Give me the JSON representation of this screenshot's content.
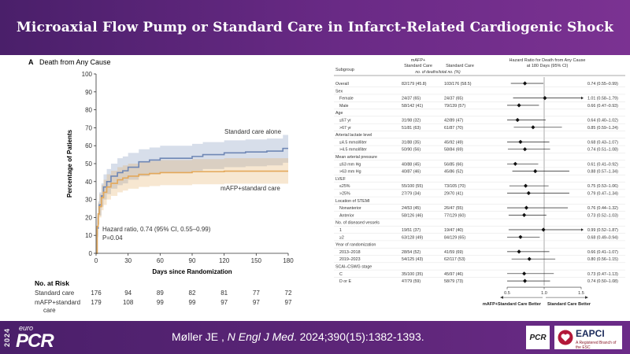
{
  "title": "Microaxial Flow Pump or Standard Care in Infarct-Related Cardiogenic Shock",
  "footer": {
    "year": "2024",
    "brand_small": "euro",
    "brand_large": "PCR",
    "citation_authors": "Møller JE ,",
    "citation_journal": "N Engl J Med",
    "citation_ref": ". 2024;390(15):1382-1393.",
    "logo_pcr": "PCR",
    "logo_eapci": "EAPCI",
    "logo_eapci_sub": "A Registered Branch of the ESC"
  },
  "colors": {
    "standard": "#6f87b5",
    "mafp": "#e3a85a"
  },
  "chart_data": [
    {
      "type": "line",
      "panel_label": "A",
      "title": "Death from Any Cause",
      "xlabel": "Days since Randomization",
      "ylabel": "Percentage of Patients",
      "xlim": [
        0,
        180
      ],
      "ylim": [
        0,
        100
      ],
      "xticks": [
        "0",
        "30",
        "60",
        "90",
        "120",
        "150",
        "180"
      ],
      "yticks": [
        "0",
        "10",
        "20",
        "30",
        "40",
        "50",
        "60",
        "70",
        "80",
        "90",
        "100"
      ],
      "series": [
        {
          "name": "Standard care alone",
          "color": "#6f87b5",
          "x": [
            0,
            1,
            2,
            3,
            5,
            7,
            10,
            14,
            20,
            25,
            30,
            40,
            50,
            60,
            75,
            90,
            100,
            120,
            140,
            160,
            175,
            180
          ],
          "y": [
            0,
            14,
            22,
            27,
            32,
            37,
            40,
            43,
            45,
            46,
            48,
            51,
            52,
            53,
            53,
            54,
            55,
            56,
            56.5,
            57,
            58.5,
            58.5
          ],
          "ci_low": [
            0,
            9,
            16,
            21,
            26,
            30,
            33,
            36,
            38,
            39,
            41,
            43,
            44,
            45,
            45,
            46,
            47,
            48,
            48.5,
            49,
            50.5,
            50.5
          ],
          "ci_high": [
            0,
            20,
            29,
            34,
            39,
            44,
            47,
            50,
            53,
            54,
            56,
            58,
            59,
            60,
            60,
            61,
            62,
            63,
            63.5,
            64,
            66,
            66
          ]
        },
        {
          "name": "mAFP+standard care",
          "color": "#e3a85a",
          "x": [
            0,
            1,
            2,
            3,
            5,
            7,
            10,
            14,
            20,
            25,
            30,
            40,
            50,
            60,
            75,
            90,
            120,
            150,
            180
          ],
          "y": [
            0,
            15,
            22,
            26,
            31,
            34,
            37,
            39,
            41,
            42,
            43,
            44,
            44.5,
            45,
            45,
            45.5,
            45.8,
            45.8,
            45.8
          ],
          "ci_low": [
            0,
            10,
            16,
            20,
            24,
            27,
            30,
            32,
            34,
            35,
            36,
            37,
            37.5,
            38,
            38,
            38.5,
            38.8,
            38.8,
            38.8
          ],
          "ci_high": [
            0,
            21,
            28,
            33,
            38,
            41,
            44,
            46,
            48,
            49,
            50,
            51,
            51.5,
            52,
            52,
            52.5,
            53,
            53,
            53
          ]
        }
      ],
      "annotations": [
        "Hazard ratio, 0.74 (95% CI, 0.55–0.99)",
        "P=0.04"
      ],
      "at_risk": {
        "header": "No. at Risk",
        "rows": [
          {
            "label": "Standard care",
            "values": [
              "176",
              "94",
              "89",
              "82",
              "81",
              "77",
              "72"
            ]
          },
          {
            "label": "mAFP+standard",
            "label2": "care",
            "values": [
              "179",
              "108",
              "99",
              "99",
              "97",
              "97",
              "97"
            ]
          }
        ]
      }
    },
    {
      "type": "forest",
      "title_line1": "Hazard Ratio for Death from Any Cause",
      "title_line2": "at 180 Days (95% CI)",
      "col_subgroup": "Subgroup",
      "col_mafp_1": "mAFP+",
      "col_mafp_2": "Standard Care",
      "col_std": "Standard Care",
      "col_units": "no. of deaths/total no. (%)",
      "xlim": [
        0.5,
        1.5
      ],
      "reference": 1.0,
      "xticks": [
        "0.5",
        "1.0",
        "1.5"
      ],
      "left_label": "mAFP+Standard Care Better",
      "right_label": "Standard Care Better",
      "rows": [
        {
          "label": "Overall",
          "indent": false,
          "mafp": "82/179 (45.8)",
          "std": "103/176 (58.5)",
          "hr_text": "0.74 (0.55–0.99)",
          "hr": 0.74,
          "lo": 0.55,
          "hi": 0.99
        },
        {
          "label": "Sex",
          "indent": false
        },
        {
          "label": "Female",
          "indent": true,
          "mafp": "24/37 (65)",
          "std": "24/37 (65)",
          "hr_text": "1.01 (0.58–1.79)",
          "hr": 1.01,
          "lo": 0.58,
          "hi": 1.79
        },
        {
          "label": "Male",
          "indent": true,
          "mafp": "58/142 (41)",
          "std": "79/139 (57)",
          "hr_text": "0.66 (0.47–0.93)",
          "hr": 0.66,
          "lo": 0.47,
          "hi": 0.93
        },
        {
          "label": "Age",
          "indent": false
        },
        {
          "label": "≤67 yr",
          "indent": true,
          "mafp": "31/98 (32)",
          "std": "42/89 (47)",
          "hr_text": "0.64 (0.40–1.02)",
          "hr": 0.64,
          "lo": 0.4,
          "hi": 1.02
        },
        {
          "label": ">67 yr",
          "indent": true,
          "mafp": "51/81 (63)",
          "std": "61/87 (70)",
          "hr_text": "0.85 (0.59–1.24)",
          "hr": 0.85,
          "lo": 0.59,
          "hi": 1.24
        },
        {
          "label": "Arterial lactate level",
          "indent": false
        },
        {
          "label": "≤4.5 mmol/liter",
          "indent": true,
          "mafp": "31/88 (35)",
          "std": "45/92 (49)",
          "hr_text": "0.68 (0.43–1.07)",
          "hr": 0.68,
          "lo": 0.43,
          "hi": 1.07
        },
        {
          "label": ">4.5 mmol/liter",
          "indent": true,
          "mafp": "50/90 (56)",
          "std": "58/84 (69)",
          "hr_text": "0.74 (0.51–1.08)",
          "hr": 0.74,
          "lo": 0.51,
          "hi": 1.08
        },
        {
          "label": "Mean arterial pressure",
          "indent": false
        },
        {
          "label": "≤63 mm Hg",
          "indent": true,
          "mafp": "40/88 (45)",
          "std": "56/85 (66)",
          "hr_text": "0.61 (0.41–0.92)",
          "hr": 0.61,
          "lo": 0.41,
          "hi": 0.92
        },
        {
          "label": ">63 mm Hg",
          "indent": true,
          "mafp": "40/87 (46)",
          "std": "45/86 (52)",
          "hr_text": "0.88 (0.57–1.34)",
          "hr": 0.88,
          "lo": 0.57,
          "hi": 1.34
        },
        {
          "label": "LVEF",
          "indent": false
        },
        {
          "label": "≤25%",
          "indent": true,
          "mafp": "55/100 (55)",
          "std": "73/105 (70)",
          "hr_text": "0.75 (0.53–1.06)",
          "hr": 0.75,
          "lo": 0.53,
          "hi": 1.06
        },
        {
          "label": ">25%",
          "indent": true,
          "mafp": "27/79 (34)",
          "std": "29/70 (41)",
          "hr_text": "0.79 (0.47–1.34)",
          "hr": 0.79,
          "lo": 0.47,
          "hi": 1.34
        },
        {
          "label": "Location of STEMI",
          "indent": false
        },
        {
          "label": "Nonanterior",
          "indent": true,
          "mafp": "24/53 (45)",
          "std": "26/47 (55)",
          "hr_text": "0.76 (0.44–1.32)",
          "hr": 0.76,
          "lo": 0.44,
          "hi": 1.32
        },
        {
          "label": "Anterior",
          "indent": true,
          "mafp": "58/126 (46)",
          "std": "77/129 (60)",
          "hr_text": "0.73 (0.52–1.03)",
          "hr": 0.73,
          "lo": 0.52,
          "hi": 1.03
        },
        {
          "label": "No. of diseased vessels",
          "indent": false
        },
        {
          "label": "1",
          "indent": true,
          "mafp": "19/51 (37)",
          "std": "19/47 (40)",
          "hr_text": "0.99 (0.52–1.87)",
          "hr": 0.99,
          "lo": 0.52,
          "hi": 1.87
        },
        {
          "label": "≥2",
          "indent": true,
          "mafp": "63/128 (49)",
          "std": "84/129 (65)",
          "hr_text": "0.68 (0.49–0.94)",
          "hr": 0.68,
          "lo": 0.49,
          "hi": 0.94
        },
        {
          "label": "Year of randomization",
          "indent": false
        },
        {
          "label": "2013–2018",
          "indent": true,
          "mafp": "28/54 (52)",
          "std": "41/59 (69)",
          "hr_text": "0.66 (0.41–1.07)",
          "hr": 0.66,
          "lo": 0.41,
          "hi": 1.07
        },
        {
          "label": "2019–2023",
          "indent": true,
          "mafp": "54/125 (43)",
          "std": "62/117 (53)",
          "hr_text": "0.80 (0.56–1.15)",
          "hr": 0.8,
          "lo": 0.56,
          "hi": 1.15
        },
        {
          "label": "SCAI–CSWG stage",
          "indent": false
        },
        {
          "label": "C",
          "indent": true,
          "mafp": "35/100 (35)",
          "std": "45/97 (46)",
          "hr_text": "0.73 (0.47–1.13)",
          "hr": 0.73,
          "lo": 0.47,
          "hi": 1.13
        },
        {
          "label": "D or E",
          "indent": true,
          "mafp": "47/79 (59)",
          "std": "58/79 (73)",
          "hr_text": "0.74 (0.50–1.08)",
          "hr": 0.74,
          "lo": 0.5,
          "hi": 1.08
        }
      ]
    }
  ]
}
